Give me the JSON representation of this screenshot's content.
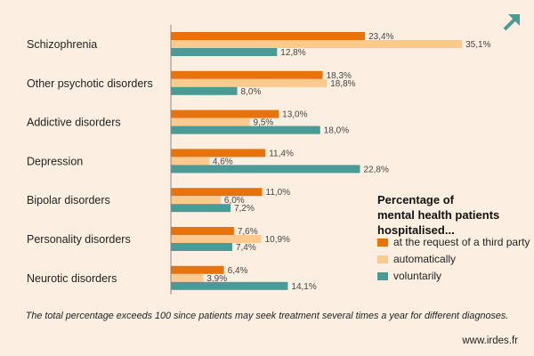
{
  "colors": {
    "background": "#fcefe1",
    "third_party": "#e8720c",
    "automatically": "#fcc98f",
    "voluntarily": "#4a9a96",
    "axis": "#888888"
  },
  "expand_icon": "expand-arrow-icon",
  "footnote": "The total percentage exceeds 100 since patients may seek treatment several times a year for different diagnoses.",
  "source": "www.irdes.fr",
  "chart_data": {
    "type": "bar",
    "orientation": "horizontal",
    "categories": [
      "Schizophrenia",
      "Other psychotic disorders",
      "Addictive disorders",
      "Depression",
      "Bipolar disorders",
      "Personality disorders",
      "Neurotic disorders"
    ],
    "series": [
      {
        "name": "at the request of a third party",
        "values": [
          23.4,
          18.3,
          13.0,
          11.4,
          11.0,
          7.6,
          6.4
        ],
        "labels": [
          "23,4%",
          "18,3%",
          "13,0%",
          "11,4%",
          "11,0%",
          "7,6%",
          "6,4%"
        ]
      },
      {
        "name": "automatically",
        "values": [
          35.1,
          18.8,
          9.5,
          4.6,
          6.0,
          10.9,
          3.9
        ],
        "labels": [
          "35,1%",
          "18,8%",
          "9,5%",
          "4,6%",
          "6,0%",
          "10,9%",
          "3,9%"
        ]
      },
      {
        "name": "voluntarily",
        "values": [
          12.8,
          8.0,
          18.0,
          22.8,
          7.2,
          7.4,
          14.1
        ],
        "labels": [
          "12,8%",
          "8,0%",
          "18,0%",
          "22,8%",
          "7,2%",
          "7,4%",
          "14,1%"
        ]
      }
    ],
    "legend": {
      "title_lines": [
        "Percentage of",
        "mental health patients",
        "hospitalised..."
      ],
      "placement": "right"
    },
    "xlim": [
      0,
      36
    ],
    "grid": false
  }
}
